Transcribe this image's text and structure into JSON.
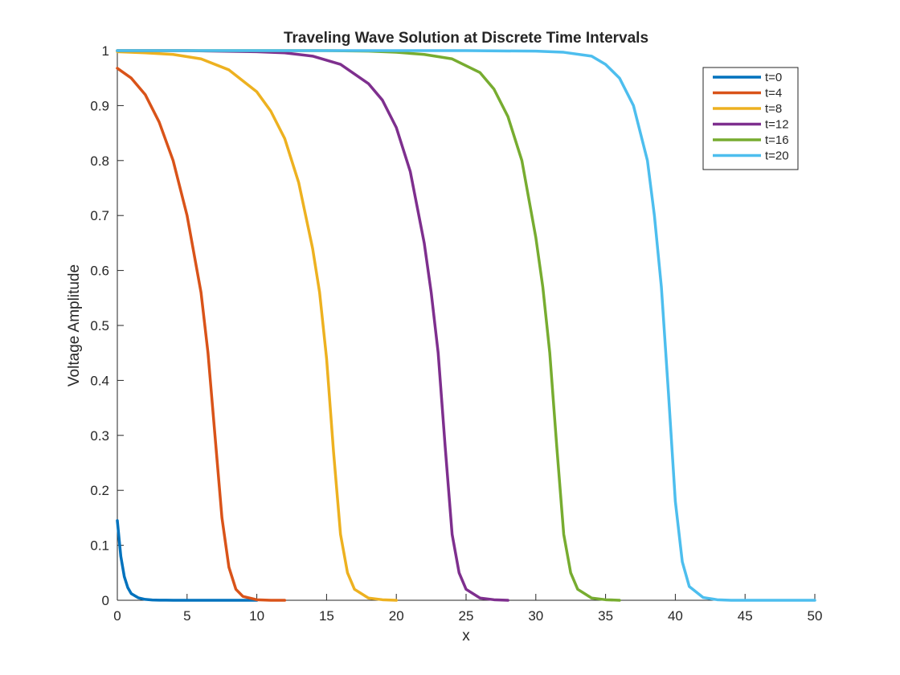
{
  "chart_data": {
    "type": "line",
    "title": "Traveling Wave Solution at Discrete Time Intervals",
    "xlabel": "x",
    "ylabel": "Voltage Amplitude",
    "xlim": [
      0,
      50
    ],
    "ylim": [
      0,
      1
    ],
    "xticks": [
      0,
      5,
      10,
      15,
      20,
      25,
      30,
      35,
      40,
      45,
      50
    ],
    "yticks": [
      0,
      0.1,
      0.2,
      0.3,
      0.4,
      0.5,
      0.6,
      0.7,
      0.8,
      0.9,
      1
    ],
    "ytick_labels": [
      "0",
      "0.1",
      "0.2",
      "0.3",
      "0.4",
      "0.5",
      "0.6",
      "0.7",
      "0.8",
      "0.9",
      "1"
    ],
    "grid": false,
    "legend_position": "top-right",
    "series": [
      {
        "name": "t=0",
        "color": "#0072bd",
        "x": [
          0,
          0.25,
          0.5,
          0.75,
          1,
          1.5,
          2,
          2.5,
          3,
          3.5,
          4,
          5,
          6,
          8,
          10
        ],
        "y": [
          0.145,
          0.08,
          0.043,
          0.023,
          0.012,
          0.0045,
          0.0016,
          0.0006,
          0.0002,
          0.0001,
          0,
          0,
          0,
          0,
          0
        ]
      },
      {
        "name": "t=4",
        "color": "#d95319",
        "x": [
          0,
          1,
          2,
          3,
          4,
          5,
          6,
          6.5,
          7,
          7.5,
          8,
          8.5,
          9,
          10,
          11,
          12
        ],
        "y": [
          0.968,
          0.95,
          0.92,
          0.87,
          0.8,
          0.7,
          0.56,
          0.45,
          0.3,
          0.15,
          0.06,
          0.02,
          0.007,
          0.001,
          0,
          0
        ]
      },
      {
        "name": "t=8",
        "color": "#edb120",
        "x": [
          0,
          2,
          4,
          6,
          8,
          10,
          11,
          12,
          13,
          14,
          14.5,
          15,
          15.5,
          16,
          16.5,
          17,
          18,
          19,
          20
        ],
        "y": [
          0.998,
          0.996,
          0.993,
          0.985,
          0.965,
          0.925,
          0.89,
          0.84,
          0.76,
          0.64,
          0.56,
          0.44,
          0.27,
          0.12,
          0.05,
          0.02,
          0.004,
          0.001,
          0
        ]
      },
      {
        "name": "t=12",
        "color": "#7e2f8e",
        "x": [
          0,
          5,
          10,
          12,
          14,
          16,
          18,
          19,
          20,
          21,
          22,
          22.5,
          23,
          23.5,
          24,
          24.5,
          25,
          26,
          27,
          28
        ],
        "y": [
          1,
          1,
          0.998,
          0.996,
          0.99,
          0.975,
          0.94,
          0.91,
          0.86,
          0.78,
          0.65,
          0.56,
          0.45,
          0.28,
          0.12,
          0.05,
          0.02,
          0.004,
          0.001,
          0
        ]
      },
      {
        "name": "t=16",
        "color": "#77ac30",
        "x": [
          0,
          10,
          15,
          18,
          20,
          22,
          24,
          26,
          27,
          28,
          29,
          30,
          30.5,
          31,
          31.5,
          32,
          32.5,
          33,
          34,
          35,
          36
        ],
        "y": [
          1,
          1,
          1,
          0.999,
          0.997,
          0.993,
          0.985,
          0.96,
          0.93,
          0.88,
          0.8,
          0.66,
          0.57,
          0.45,
          0.28,
          0.12,
          0.05,
          0.02,
          0.004,
          0.001,
          0
        ]
      },
      {
        "name": "t=20",
        "color": "#4dbeee",
        "x": [
          0,
          10,
          20,
          25,
          30,
          32,
          34,
          35,
          36,
          37,
          38,
          38.5,
          39,
          39.5,
          40,
          40.5,
          41,
          42,
          43,
          44,
          50
        ],
        "y": [
          1,
          1,
          1,
          1,
          0.999,
          0.997,
          0.99,
          0.975,
          0.95,
          0.9,
          0.8,
          0.7,
          0.57,
          0.38,
          0.18,
          0.07,
          0.025,
          0.005,
          0.001,
          0,
          0
        ]
      }
    ]
  }
}
